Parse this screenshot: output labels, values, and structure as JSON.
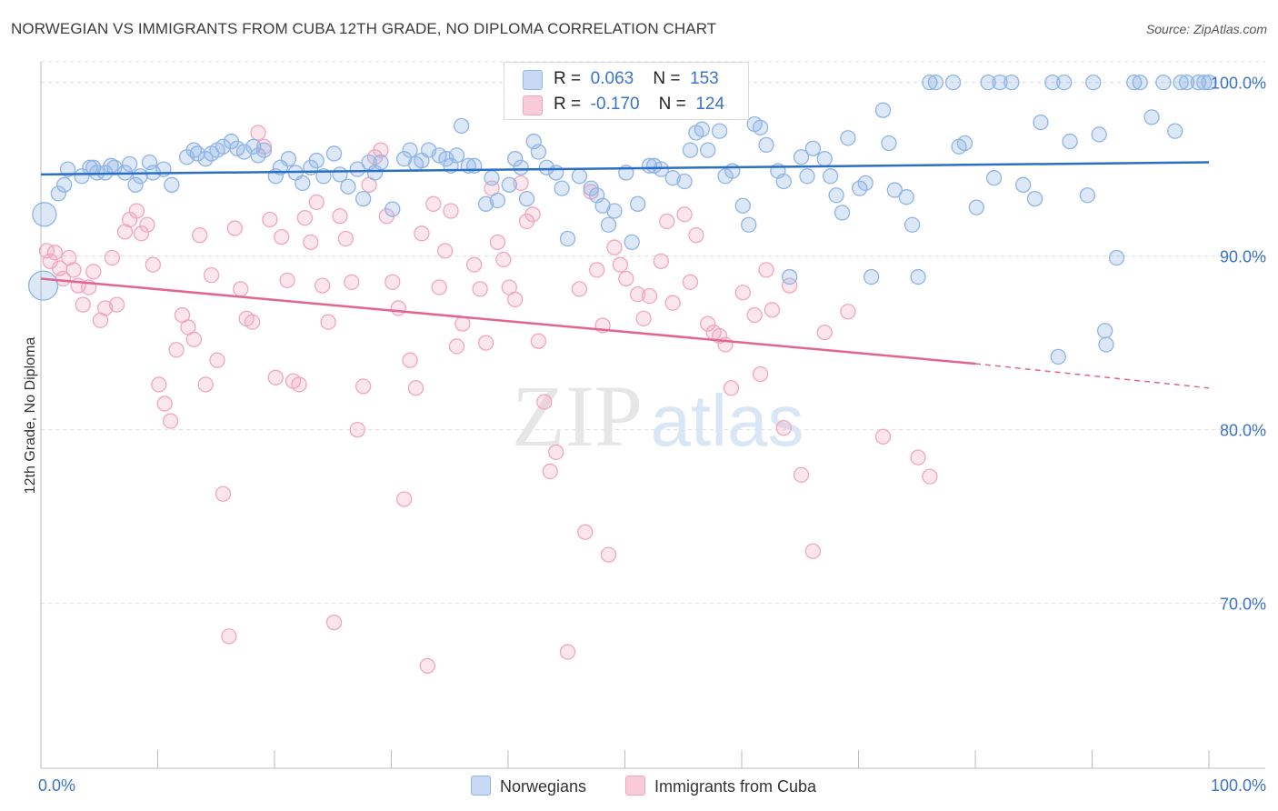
{
  "title": "NORWEGIAN VS IMMIGRANTS FROM CUBA 12TH GRADE, NO DIPLOMA CORRELATION CHART",
  "source": "Source: ZipAtlas.com",
  "watermark": {
    "zip": "ZIP",
    "atlas": "atlas"
  },
  "colors": {
    "blue": "#8fb4e6",
    "blue_line": "#2b6fc4",
    "pink": "#f2a6bd",
    "pink_line": "#e0668e",
    "axis_text": "#3a73c8"
  },
  "legend_top": {
    "rows": [
      {
        "r_label": "R =",
        "r_value": "0.063",
        "n_label": "N =",
        "n_value": "153"
      },
      {
        "r_label": "R =",
        "r_value": "-0.170",
        "n_label": "N =",
        "n_value": "124"
      }
    ]
  },
  "legend_bottom": [
    "Norwegians",
    "Immigrants from Cuba"
  ],
  "chart_data": {
    "type": "scatter",
    "ylabel": "12th Grade, No Diploma",
    "x_tick_labels": [
      "0.0%",
      "100.0%"
    ],
    "y_tick_labels": [
      "100.0%",
      "90.0%",
      "80.0%",
      "70.0%"
    ],
    "y_ticks": [
      100,
      90,
      80,
      70
    ],
    "xlim": [
      0,
      100
    ],
    "ylim": [
      60.5,
      101.5
    ],
    "grid": true,
    "series": [
      {
        "name": "Norwegians",
        "trend": {
          "x0": 0,
          "y0": 94.7,
          "x1": 100,
          "y1": 95.4
        },
        "points": [
          [
            0.3,
            92.4
          ],
          [
            0.2,
            88.3
          ],
          [
            1.5,
            93.6
          ],
          [
            2,
            94.1
          ],
          [
            2.3,
            95
          ],
          [
            3.5,
            94.6
          ],
          [
            4.2,
            95.1
          ],
          [
            4.5,
            95.1
          ],
          [
            4.8,
            94.8
          ],
          [
            5.5,
            94.8
          ],
          [
            6,
            95.2
          ],
          [
            6.3,
            95.1
          ],
          [
            7.2,
            94.8
          ],
          [
            7.6,
            95.3
          ],
          [
            8.1,
            94.1
          ],
          [
            8.5,
            94.6
          ],
          [
            9.3,
            95.4
          ],
          [
            9.6,
            94.8
          ],
          [
            10.5,
            95
          ],
          [
            11.2,
            94.1
          ],
          [
            12.5,
            95.7
          ],
          [
            13.1,
            96.1
          ],
          [
            13.4,
            95.9
          ],
          [
            14.1,
            95.6
          ],
          [
            14.6,
            95.9
          ],
          [
            15.1,
            96.1
          ],
          [
            15.6,
            96.3
          ],
          [
            16.3,
            96.6
          ],
          [
            16.8,
            96.2
          ],
          [
            17.4,
            96
          ],
          [
            18.2,
            96.3
          ],
          [
            18.6,
            95.8
          ],
          [
            19.1,
            96.1
          ],
          [
            20.1,
            94.6
          ],
          [
            20.5,
            95.1
          ],
          [
            21.2,
            95.6
          ],
          [
            21.8,
            94.8
          ],
          [
            22.4,
            94.2
          ],
          [
            23.1,
            95.1
          ],
          [
            23.6,
            95.5
          ],
          [
            24.2,
            94.6
          ],
          [
            25.1,
            95.9
          ],
          [
            25.6,
            94.7
          ],
          [
            26.3,
            94
          ],
          [
            27.1,
            95
          ],
          [
            27.6,
            93.3
          ],
          [
            28.1,
            95.4
          ],
          [
            28.6,
            94.8
          ],
          [
            29.1,
            95.4
          ],
          [
            30.1,
            92.7
          ],
          [
            31.1,
            95.6
          ],
          [
            31.6,
            96.1
          ],
          [
            32.1,
            95.3
          ],
          [
            32.6,
            95.5
          ],
          [
            33.2,
            96.1
          ],
          [
            34.1,
            95.8
          ],
          [
            34.7,
            95.6
          ],
          [
            35.1,
            95.2
          ],
          [
            35.6,
            95.8
          ],
          [
            36,
            97.5
          ],
          [
            36.6,
            95.2
          ],
          [
            37.1,
            95.2
          ],
          [
            38.1,
            93
          ],
          [
            38.6,
            94.5
          ],
          [
            39.1,
            93.2
          ],
          [
            40.1,
            94.1
          ],
          [
            40.6,
            95.6
          ],
          [
            41.1,
            95.1
          ],
          [
            41.6,
            93.3
          ],
          [
            42.2,
            96.6
          ],
          [
            42.6,
            96
          ],
          [
            43.3,
            95.1
          ],
          [
            44.1,
            94.8
          ],
          [
            44.6,
            93.9
          ],
          [
            45.1,
            91
          ],
          [
            46.1,
            94.6
          ],
          [
            47.1,
            93.9
          ],
          [
            47.6,
            93.5
          ],
          [
            48.1,
            92.9
          ],
          [
            48.6,
            91.8
          ],
          [
            49.1,
            92.6
          ],
          [
            50.1,
            94.8
          ],
          [
            50.6,
            90.8
          ],
          [
            51.1,
            93
          ],
          [
            52.1,
            95.2
          ],
          [
            52.5,
            95.2
          ],
          [
            53.1,
            95
          ],
          [
            54.1,
            94.5
          ],
          [
            55.1,
            94.3
          ],
          [
            55.6,
            96.1
          ],
          [
            56.1,
            97.1
          ],
          [
            56.6,
            97.3
          ],
          [
            57.1,
            96.1
          ],
          [
            58.1,
            97.2
          ],
          [
            58.6,
            94.6
          ],
          [
            59.2,
            94.9
          ],
          [
            60.1,
            92.9
          ],
          [
            60.6,
            91.8
          ],
          [
            61.1,
            97.6
          ],
          [
            61.6,
            97.4
          ],
          [
            62.1,
            96.4
          ],
          [
            63.1,
            94.9
          ],
          [
            63.6,
            94.3
          ],
          [
            64.1,
            88.8
          ],
          [
            65.1,
            95.7
          ],
          [
            65.6,
            94.6
          ],
          [
            66.1,
            96.2
          ],
          [
            67.1,
            95.6
          ],
          [
            67.6,
            94.6
          ],
          [
            68.1,
            93.5
          ],
          [
            68.6,
            92.5
          ],
          [
            69.1,
            96.8
          ],
          [
            70.1,
            93.9
          ],
          [
            70.6,
            94.2
          ],
          [
            71.1,
            88.8
          ],
          [
            72.1,
            98.4
          ],
          [
            72.6,
            96.5
          ],
          [
            73.1,
            93.8
          ],
          [
            74.1,
            93.4
          ],
          [
            74.6,
            91.8
          ],
          [
            75.1,
            88.8
          ],
          [
            76.1,
            100
          ],
          [
            76.6,
            100
          ],
          [
            78.1,
            100
          ],
          [
            78.6,
            96.3
          ],
          [
            79.1,
            96.5
          ],
          [
            80.1,
            92.8
          ],
          [
            81.1,
            100
          ],
          [
            81.6,
            94.5
          ],
          [
            82.1,
            100
          ],
          [
            83.1,
            100
          ],
          [
            84.1,
            94.1
          ],
          [
            85.1,
            93.3
          ],
          [
            85.6,
            97.7
          ],
          [
            87.1,
            84.2
          ],
          [
            87.6,
            100
          ],
          [
            90.1,
            100
          ],
          [
            90.6,
            97
          ],
          [
            91.1,
            85.7
          ],
          [
            92.1,
            89.9
          ],
          [
            93.6,
            100
          ],
          [
            94.1,
            100
          ],
          [
            95.1,
            98
          ],
          [
            97.1,
            97.2
          ],
          [
            97.6,
            100
          ],
          [
            98.1,
            100
          ],
          [
            99.1,
            100
          ],
          [
            99.6,
            100
          ],
          [
            91.2,
            84.9
          ],
          [
            88.1,
            96.6
          ],
          [
            89.6,
            93.5
          ],
          [
            86.6,
            100
          ],
          [
            100,
            100
          ],
          [
            96.1,
            100
          ]
        ]
      },
      {
        "name": "Immigrants from Cuba",
        "trend": {
          "x0": 0,
          "y0": 88.7,
          "x1": 80,
          "y1": 83.8,
          "dash_x1": 100,
          "dash_y1": 82.4
        },
        "points": [
          [
            0.5,
            90.3
          ],
          [
            0.8,
            89.7
          ],
          [
            1.2,
            90.2
          ],
          [
            1.6,
            89.3
          ],
          [
            1.9,
            88.7
          ],
          [
            2.4,
            89.9
          ],
          [
            2.8,
            89.2
          ],
          [
            3.2,
            88.3
          ],
          [
            3.6,
            87.2
          ],
          [
            4.1,
            88.2
          ],
          [
            4.5,
            89.1
          ],
          [
            5.1,
            86.3
          ],
          [
            5.5,
            87
          ],
          [
            6.1,
            89.9
          ],
          [
            6.5,
            87.2
          ],
          [
            7.2,
            91.4
          ],
          [
            7.6,
            92.1
          ],
          [
            8.2,
            92.6
          ],
          [
            8.6,
            91.3
          ],
          [
            9.1,
            91.8
          ],
          [
            9.6,
            89.5
          ],
          [
            10.1,
            82.6
          ],
          [
            10.6,
            81.5
          ],
          [
            11.1,
            80.5
          ],
          [
            11.6,
            84.6
          ],
          [
            12.1,
            86.6
          ],
          [
            12.6,
            85.9
          ],
          [
            13.1,
            85.2
          ],
          [
            13.6,
            91.2
          ],
          [
            14.1,
            82.6
          ],
          [
            14.6,
            88.9
          ],
          [
            15.1,
            84
          ],
          [
            15.6,
            76.3
          ],
          [
            16.1,
            68.1
          ],
          [
            16.6,
            91.6
          ],
          [
            17.1,
            88.1
          ],
          [
            17.6,
            86.4
          ],
          [
            18.1,
            86.2
          ],
          [
            18.6,
            97.1
          ],
          [
            19.1,
            96.3
          ],
          [
            19.6,
            92.1
          ],
          [
            20.1,
            83
          ],
          [
            20.6,
            91.1
          ],
          [
            21.1,
            88.6
          ],
          [
            21.6,
            82.8
          ],
          [
            22.1,
            82.6
          ],
          [
            22.6,
            92.2
          ],
          [
            23.1,
            90.8
          ],
          [
            23.6,
            93.1
          ],
          [
            24.1,
            88.3
          ],
          [
            24.6,
            86.2
          ],
          [
            25.1,
            68.9
          ],
          [
            25.6,
            92.3
          ],
          [
            26.1,
            91
          ],
          [
            26.6,
            88.5
          ],
          [
            27.1,
            80
          ],
          [
            27.6,
            82.5
          ],
          [
            28.1,
            94.1
          ],
          [
            28.6,
            95.7
          ],
          [
            29.1,
            96.1
          ],
          [
            29.6,
            92.3
          ],
          [
            30.1,
            88.5
          ],
          [
            30.6,
            87
          ],
          [
            31.1,
            76
          ],
          [
            31.6,
            84
          ],
          [
            32.1,
            82.4
          ],
          [
            32.6,
            91.3
          ],
          [
            33.1,
            66.4
          ],
          [
            33.6,
            93
          ],
          [
            34.1,
            88.2
          ],
          [
            34.6,
            90.3
          ],
          [
            35.1,
            92.6
          ],
          [
            35.6,
            84.8
          ],
          [
            36.1,
            86.1
          ],
          [
            37.1,
            89.5
          ],
          [
            37.6,
            88.1
          ],
          [
            38.1,
            85
          ],
          [
            38.6,
            93.9
          ],
          [
            39.1,
            90.8
          ],
          [
            39.6,
            89.8
          ],
          [
            40.1,
            88.2
          ],
          [
            40.6,
            87.5
          ],
          [
            41.1,
            94.2
          ],
          [
            41.6,
            92
          ],
          [
            42.1,
            92.4
          ],
          [
            42.6,
            85.1
          ],
          [
            43.1,
            81.6
          ],
          [
            43.6,
            77.6
          ],
          [
            44.1,
            78.7
          ],
          [
            45.1,
            67.2
          ],
          [
            46.1,
            88.1
          ],
          [
            46.6,
            74.1
          ],
          [
            47.1,
            93.7
          ],
          [
            47.6,
            89.2
          ],
          [
            48.1,
            86
          ],
          [
            48.6,
            72.8
          ],
          [
            49.1,
            90.5
          ],
          [
            49.6,
            89.5
          ],
          [
            50.1,
            88.7
          ],
          [
            51.1,
            87.8
          ],
          [
            51.6,
            86.4
          ],
          [
            52.1,
            87.7
          ],
          [
            53.1,
            89.7
          ],
          [
            53.6,
            92
          ],
          [
            54.1,
            87.3
          ],
          [
            55.1,
            92.4
          ],
          [
            55.6,
            88.5
          ],
          [
            56.1,
            91.2
          ],
          [
            57.1,
            86.1
          ],
          [
            57.6,
            85.6
          ],
          [
            58.1,
            85.4
          ],
          [
            58.6,
            84.9
          ],
          [
            59.1,
            82.4
          ],
          [
            60.1,
            87.9
          ],
          [
            61.1,
            86.6
          ],
          [
            61.6,
            83.2
          ],
          [
            62.1,
            89.2
          ],
          [
            62.6,
            86.9
          ],
          [
            63.6,
            80.1
          ],
          [
            64.1,
            88.3
          ],
          [
            65.1,
            77.4
          ],
          [
            66.1,
            73
          ],
          [
            67.1,
            85.6
          ],
          [
            69.1,
            86.8
          ],
          [
            72.1,
            79.6
          ],
          [
            75.1,
            78.4
          ],
          [
            76.1,
            77.3
          ]
        ]
      }
    ]
  }
}
